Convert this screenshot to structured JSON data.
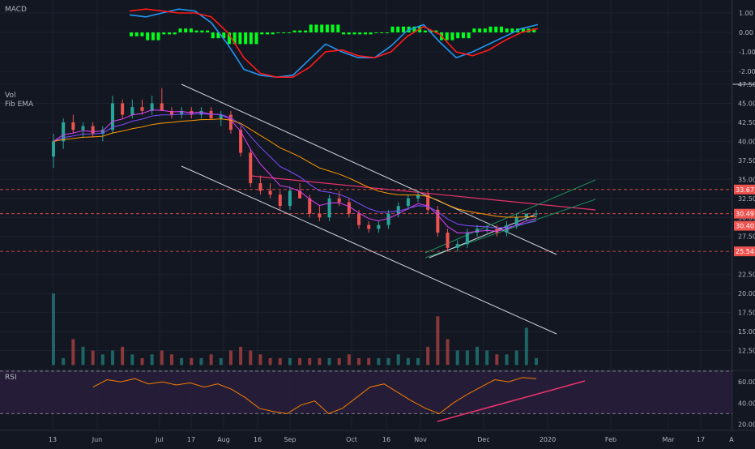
{
  "colors": {
    "background": "#131722",
    "grid": "#1e2230",
    "text": "#b2b5be",
    "up": "#26a69a",
    "down": "#ef5350",
    "macd_hist_pos": "#00ff1a",
    "macd_hist_neg": "#00ff1a",
    "macd_line": "#2196f3",
    "signal_line": "#ff1a1a",
    "channel": "#d1d4dc",
    "trend_pink": "#e8336a",
    "green_line": "#1b8a5a",
    "rsi_line": "#f57c00",
    "rsi_band": "#2a1f3d",
    "price_label_red": "#ef5350",
    "price_label_green": "#26a69a"
  },
  "panes": {
    "macd": {
      "label": "MACD",
      "ticks": [
        "1.00",
        "0.00",
        "-1.00",
        "-2.00"
      ]
    },
    "price": {
      "label_vol": "Vol",
      "label_ema": "Fib EMA",
      "ticks": [
        "47.50",
        "45.00",
        "42.50",
        "40.00",
        "37.50",
        "35.00",
        "32.50",
        "30.00",
        "27.50",
        "22.50",
        "20.00",
        "17.50",
        "15.00",
        "12.50"
      ],
      "price_labels": [
        {
          "text": "33.67",
          "kind": "red"
        },
        {
          "text": "30.49",
          "kind": "red"
        },
        {
          "text": "30.40",
          "kind": "red"
        },
        {
          "text": "25.54",
          "kind": "red"
        }
      ]
    },
    "rsi": {
      "label": "RSI",
      "ticks": [
        "60.00",
        "40.00",
        "20.00"
      ]
    }
  },
  "x_axis": {
    "ticks": [
      "13",
      "Jun",
      "Jul",
      "17",
      "Aug",
      "16",
      "Sep",
      "Oct",
      "16",
      "Nov",
      "Dec",
      "2020",
      "Feb",
      "Mar",
      "17",
      "A"
    ]
  },
  "chart_data": [
    {
      "type": "line",
      "name": "macd",
      "series": [
        {
          "name": "",
          "values": [
            0.9,
            0.8,
            1.0,
            1.2,
            1.1,
            0.5,
            -0.6,
            -1.9,
            -2.2,
            -2.3,
            -2.2,
            -1.4,
            -0.6,
            -1.0,
            -1.3,
            -1.3,
            -0.7,
            0.1,
            0.4,
            -0.5,
            -1.3,
            -1.0,
            -0.6,
            -0.2,
            0.2,
            0.4
          ]
        },
        {
          "name": "",
          "values": [
            1.1,
            1.2,
            1.1,
            1.0,
            1.0,
            0.8,
            0.0,
            -1.3,
            -2.1,
            -2.3,
            -2.3,
            -1.8,
            -1.0,
            -0.9,
            -1.2,
            -1.3,
            -1.0,
            -0.2,
            0.3,
            -0.1,
            -1.0,
            -1.2,
            -0.9,
            -0.4,
            0.0,
            0.2
          ]
        }
      ],
      "ylim": [
        -2.5,
        1.5
      ]
    },
    {
      "type": "bar",
      "name": "price",
      "ohlc": [
        [
          38,
          41,
          36.5,
          40
        ],
        [
          40,
          43,
          39,
          42.5
        ],
        [
          42.5,
          43.5,
          41,
          41.5
        ],
        [
          41.5,
          42.5,
          40.5,
          42
        ],
        [
          42,
          42.5,
          40.5,
          41
        ],
        [
          41,
          42,
          40,
          41.5
        ],
        [
          41.5,
          46,
          41,
          45
        ],
        [
          45,
          45.5,
          43,
          43.5
        ],
        [
          43.5,
          45.5,
          43,
          44.5
        ],
        [
          44.5,
          45.5,
          43.5,
          44
        ],
        [
          44,
          46,
          43.5,
          45
        ],
        [
          45,
          47,
          44,
          44
        ],
        [
          44,
          44.5,
          43,
          43.5
        ],
        [
          43.5,
          44.5,
          43,
          44
        ],
        [
          44,
          44.5,
          43,
          43.5
        ],
        [
          43.5,
          44.5,
          43,
          44
        ],
        [
          44,
          44.5,
          43,
          43
        ],
        [
          43,
          44,
          42,
          43.5
        ],
        [
          43.5,
          44,
          41,
          41.5
        ],
        [
          41.5,
          42,
          38,
          38.5
        ],
        [
          38.5,
          39,
          34,
          34.5
        ],
        [
          34.5,
          35.5,
          33,
          33.5
        ],
        [
          33.5,
          34.5,
          32.5,
          33
        ],
        [
          33,
          33.5,
          31,
          31.5
        ],
        [
          31.5,
          34,
          31,
          33.5
        ],
        [
          33.5,
          34.5,
          32.5,
          32.5
        ],
        [
          32.5,
          33,
          30,
          30.5
        ],
        [
          30.5,
          31.5,
          29.5,
          30
        ],
        [
          30,
          33,
          29.5,
          32.5
        ],
        [
          32.5,
          33.5,
          31.5,
          32
        ],
        [
          32,
          32.5,
          30,
          30.5
        ],
        [
          30.5,
          31,
          28.5,
          29
        ],
        [
          29,
          29.5,
          28,
          28.5
        ],
        [
          28.5,
          29.5,
          28,
          29
        ],
        [
          29,
          31,
          28.5,
          30.5
        ],
        [
          30.5,
          32,
          30,
          31.5
        ],
        [
          31.5,
          33,
          31,
          32.5
        ],
        [
          32.5,
          33.5,
          32,
          33
        ],
        [
          33,
          33.5,
          30.5,
          31
        ],
        [
          31,
          31.5,
          27.5,
          28
        ],
        [
          28,
          28.5,
          25.5,
          26
        ],
        [
          26,
          27,
          25.5,
          26.5
        ],
        [
          26.5,
          28.5,
          26,
          28
        ],
        [
          28,
          29,
          27.5,
          28.5
        ],
        [
          28.5,
          29,
          28,
          28.5
        ],
        [
          28.5,
          29,
          27.5,
          28
        ],
        [
          28,
          29.5,
          27.5,
          29
        ],
        [
          29,
          30.5,
          28.5,
          30
        ],
        [
          30,
          30.5,
          29.5,
          30.5
        ],
        [
          30.5,
          31,
          30,
          30.5
        ]
      ],
      "ylim": [
        10,
        47.5
      ]
    },
    {
      "type": "bar",
      "name": "volume",
      "values": [
        20,
        11.5,
        14,
        13,
        12.5,
        12,
        12.5,
        13,
        12,
        11.5,
        12,
        12.5,
        12,
        11.5,
        11.5,
        11.5,
        12,
        11.5,
        12.5,
        13,
        12.5,
        12,
        11.5,
        11.5,
        11.5,
        11.5,
        11.5,
        11.5,
        11.5,
        11.5,
        12,
        11.5,
        11.5,
        11.5,
        11.5,
        12,
        11.5,
        11.5,
        13,
        17,
        14,
        12.5,
        12.5,
        13,
        12.5,
        12,
        12,
        12.5,
        15.5,
        11.5
      ]
    },
    {
      "type": "line",
      "name": "rsi",
      "series": [
        {
          "name": "",
          "values": [
            55,
            62,
            60,
            63,
            58,
            60,
            57,
            59,
            55,
            58,
            53,
            45,
            35,
            32,
            30,
            38,
            42,
            30,
            35,
            45,
            55,
            58,
            50,
            42,
            35,
            30,
            40,
            48,
            55,
            62,
            60,
            64,
            63
          ]
        }
      ],
      "ylim": [
        15,
        70
      ]
    }
  ]
}
